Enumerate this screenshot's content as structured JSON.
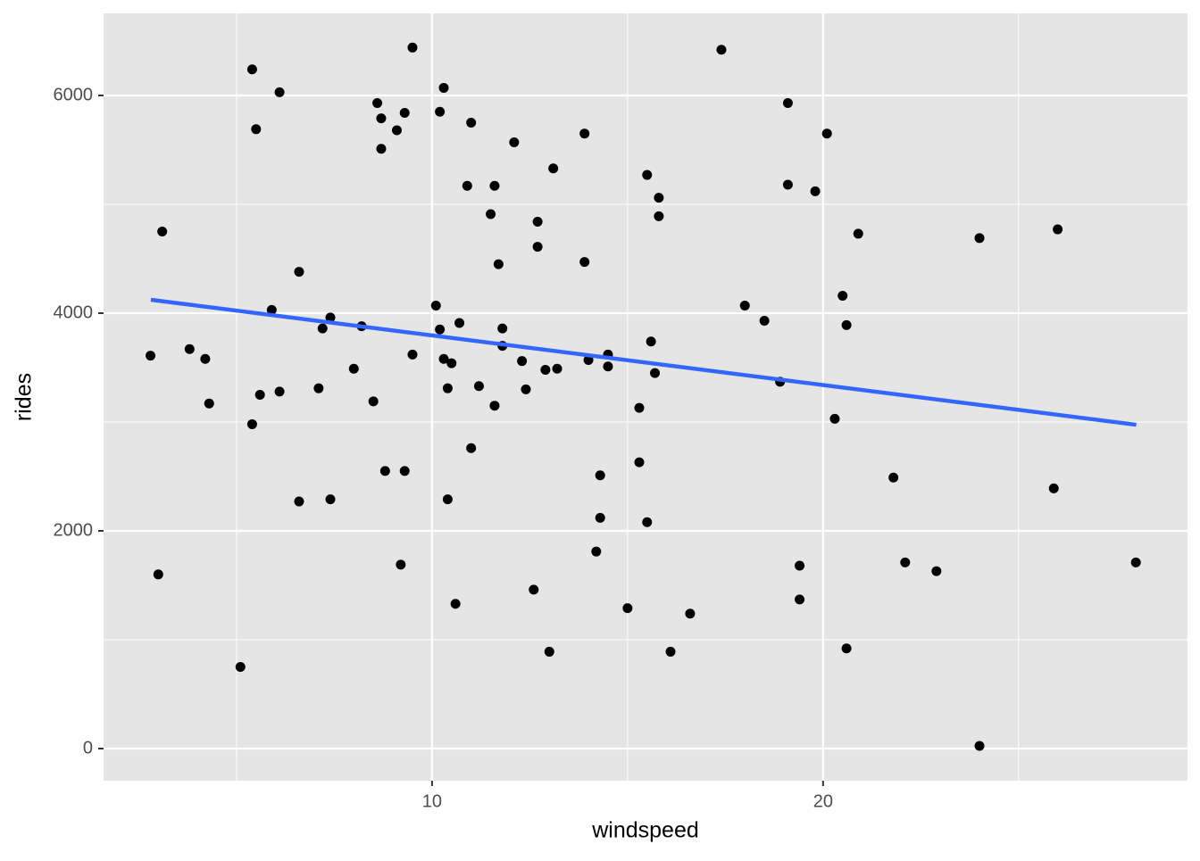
{
  "chart_data": {
    "type": "scatter",
    "x_label": "windspeed",
    "y_label": "rides",
    "xlim": [
      1.6,
      29.32
    ],
    "ylim": [
      -295,
      6754
    ],
    "xticks": [
      10,
      20
    ],
    "yticks": [
      0,
      2000,
      4000,
      6000
    ],
    "minor_xticks": [
      5,
      15,
      25
    ],
    "minor_yticks": [
      1000,
      3000,
      5000
    ],
    "grid": true,
    "panel_color": "#e5e5e5",
    "points": {
      "color": "#000000",
      "x": [
        2.8,
        3.1,
        3.0,
        3.8,
        4.2,
        4.3,
        5.1,
        5.4,
        5.5,
        5.4,
        5.6,
        6.1,
        5.9,
        6.1,
        6.6,
        6.6,
        7.1,
        7.2,
        7.4,
        7.4,
        8.0,
        8.2,
        8.5,
        8.6,
        8.7,
        8.7,
        8.8,
        9.1,
        9.2,
        9.3,
        9.3,
        9.5,
        9.5,
        10.1,
        10.2,
        10.2,
        10.3,
        10.3,
        10.4,
        10.5,
        10.4,
        10.6,
        10.7,
        10.9,
        11.0,
        11.0,
        11.2,
        11.5,
        11.6,
        11.6,
        11.7,
        11.8,
        11.8,
        12.1,
        12.3,
        12.4,
        12.6,
        12.7,
        12.7,
        12.9,
        13.0,
        13.1,
        13.2,
        13.9,
        13.9,
        14.0,
        14.3,
        14.3,
        14.2,
        14.5,
        14.5,
        15.0,
        15.3,
        15.3,
        15.5,
        15.5,
        15.6,
        15.7,
        15.8,
        15.8,
        16.1,
        16.6,
        17.4,
        18.0,
        18.5,
        18.9,
        19.1,
        19.1,
        19.4,
        19.4,
        19.8,
        20.1,
        20.3,
        20.5,
        20.6,
        20.6,
        20.9,
        21.8,
        22.1,
        22.9,
        24.0,
        24.0,
        25.9,
        26.0,
        28.0
      ],
      "y": [
        3610,
        4750,
        1600,
        3670,
        3580,
        3170,
        750,
        6240,
        5690,
        2980,
        3250,
        6030,
        4030,
        3280,
        4380,
        2270,
        3310,
        3860,
        3960,
        2290,
        3490,
        3880,
        3190,
        5930,
        5790,
        5510,
        2550,
        5680,
        1690,
        2550,
        5840,
        3620,
        6440,
        4070,
        5850,
        3850,
        6070,
        3580,
        3310,
        3540,
        2290,
        1330,
        3910,
        5170,
        2760,
        5750,
        3330,
        4910,
        5170,
        3150,
        4450,
        3860,
        3700,
        5570,
        3560,
        3300,
        1460,
        4610,
        4840,
        3480,
        890,
        5330,
        3490,
        5650,
        4470,
        3570,
        2510,
        2120,
        1810,
        3620,
        3510,
        1290,
        3130,
        2630,
        5270,
        2080,
        3740,
        3450,
        5060,
        4890,
        890,
        1240,
        6420,
        4070,
        3930,
        3370,
        5930,
        5180,
        1680,
        1370,
        5120,
        5650,
        3030,
        4160,
        3890,
        920,
        4730,
        2490,
        1710,
        1630,
        4690,
        25,
        2390,
        4770,
        1710
      ]
    },
    "trend": {
      "color": "#3366ff",
      "x": [
        2.81,
        28.01
      ],
      "y": [
        4123,
        2975
      ]
    }
  }
}
